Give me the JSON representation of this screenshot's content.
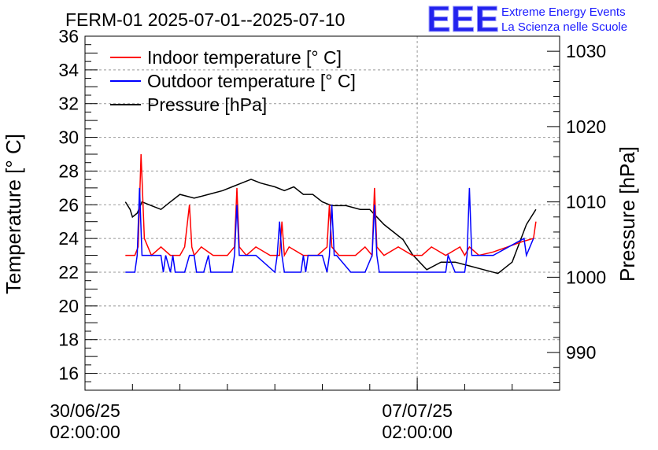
{
  "chart_data": {
    "type": "line",
    "title": "FERM-01 2025-07-01--2025-07-10",
    "ylabel": "Temperature [° C]",
    "ylabel_right": "Pressure [hPa]",
    "ylim": [
      15,
      36
    ],
    "ylim_right": [
      985,
      1032
    ],
    "yticks": [
      16,
      18,
      20,
      22,
      24,
      26,
      28,
      30,
      32,
      34,
      36
    ],
    "yticks_right": [
      990,
      1000,
      1010,
      1020,
      1030
    ],
    "xlim_days": [
      0,
      10
    ],
    "xtick_labels": [
      {
        "x_day": 0,
        "date": "30/06/25",
        "time": "02:00:00"
      },
      {
        "x_day": 7,
        "date": "07/07/25",
        "time": "02:00:00"
      }
    ],
    "grid": true,
    "legend_position": "top-left",
    "series": [
      {
        "name": "Indoor temperature [° C]",
        "color": "#ff0000",
        "axis": "left",
        "x": [
          0.85,
          1.05,
          1.12,
          1.18,
          1.25,
          1.4,
          1.6,
          1.8,
          2.0,
          2.1,
          2.2,
          2.25,
          2.3,
          2.45,
          2.7,
          2.9,
          3.0,
          3.15,
          3.2,
          3.25,
          3.4,
          3.6,
          3.9,
          4.1,
          4.15,
          4.2,
          4.3,
          4.6,
          4.9,
          5.1,
          5.15,
          5.2,
          5.35,
          5.7,
          5.9,
          6.05,
          6.1,
          6.15,
          6.3,
          6.6,
          6.9,
          7.1,
          7.3,
          7.6,
          7.9,
          8.0,
          8.1,
          8.3,
          8.6,
          8.9,
          9.2,
          9.45,
          9.5
        ],
        "y": [
          23,
          23,
          23.5,
          29,
          24,
          23,
          23.5,
          23,
          23,
          23.5,
          26,
          23.5,
          23,
          23.5,
          23,
          23,
          23,
          23.5,
          27,
          23.5,
          23,
          23.5,
          23,
          23,
          25,
          23,
          23.5,
          23,
          23,
          23.5,
          26,
          23.5,
          23,
          23,
          23.5,
          23,
          27,
          23.5,
          23,
          23.5,
          23,
          23,
          23.5,
          23,
          23.5,
          23,
          23.5,
          23,
          23.2,
          23.5,
          23.8,
          24,
          25
        ]
      },
      {
        "name": "Outdoor temperature [° C]",
        "color": "#0000ff",
        "axis": "left",
        "x": [
          0.85,
          1.05,
          1.1,
          1.15,
          1.2,
          1.3,
          1.6,
          1.65,
          1.7,
          1.8,
          1.85,
          1.9,
          2.1,
          2.2,
          2.3,
          2.35,
          2.5,
          2.6,
          2.65,
          2.75,
          3.1,
          3.15,
          3.2,
          3.25,
          3.3,
          3.6,
          4.0,
          4.05,
          4.1,
          4.15,
          4.2,
          4.55,
          4.6,
          4.65,
          4.7,
          5.0,
          5.1,
          5.15,
          5.2,
          5.25,
          5.3,
          5.6,
          5.9,
          6.05,
          6.1,
          6.15,
          6.2,
          6.4,
          6.8,
          7.1,
          7.4,
          7.6,
          7.65,
          7.8,
          8.0,
          8.05,
          8.1,
          8.15,
          8.25,
          8.6,
          9.25,
          9.3,
          9.45
        ],
        "y": [
          22,
          22,
          23,
          27,
          23,
          23,
          23,
          22,
          23,
          22,
          23,
          22,
          22,
          23,
          23,
          22,
          22,
          23,
          22,
          22,
          22,
          23,
          26,
          23,
          23,
          23,
          22,
          23,
          25,
          23,
          22,
          22,
          23,
          22,
          23,
          23,
          22,
          23,
          26,
          23,
          23,
          22,
          22,
          23,
          26,
          23,
          22,
          22,
          22,
          22,
          22,
          22,
          23,
          22,
          22,
          23,
          27,
          23,
          23,
          23,
          24,
          23,
          24
        ]
      },
      {
        "name": "Pressure [hPa]",
        "color": "#000000",
        "axis": "right",
        "x": [
          0.85,
          0.95,
          1.0,
          1.1,
          1.2,
          1.4,
          1.6,
          1.8,
          2.0,
          2.3,
          2.6,
          2.9,
          3.1,
          3.3,
          3.5,
          3.7,
          4.0,
          4.2,
          4.4,
          4.6,
          4.8,
          5.0,
          5.2,
          5.5,
          5.8,
          6.0,
          6.15,
          6.3,
          6.5,
          6.7,
          6.9,
          7.2,
          7.5,
          7.8,
          8.1,
          8.4,
          8.7,
          9.0,
          9.3,
          9.5
        ],
        "y": [
          1010,
          1009,
          1008,
          1008.5,
          1010,
          1009.5,
          1009,
          1010,
          1011,
          1010.5,
          1011,
          1011.5,
          1012,
          1012.5,
          1013,
          1012.5,
          1012,
          1011.5,
          1012,
          1011,
          1011,
          1010,
          1009.5,
          1009.5,
          1009,
          1009,
          1008,
          1007,
          1006,
          1005,
          1003,
          1001,
          1002,
          1002,
          1001.5,
          1001,
          1000.5,
          1002,
          1007,
          1009
        ]
      }
    ]
  }
}
